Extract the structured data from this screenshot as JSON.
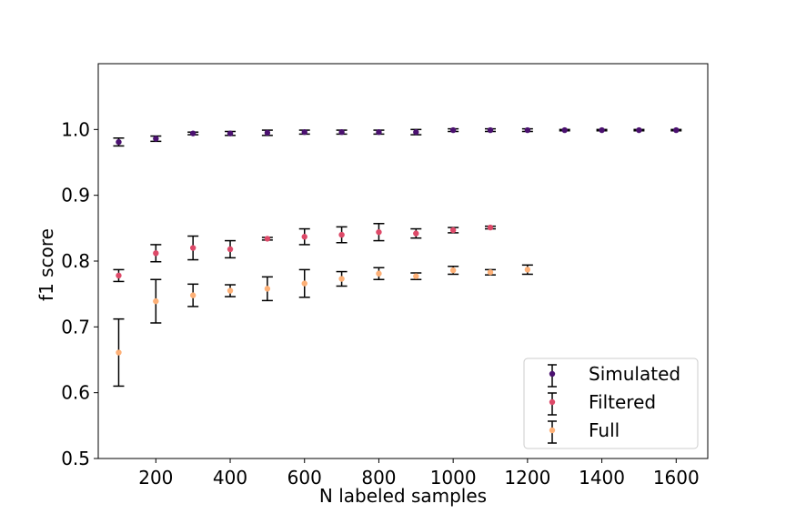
{
  "chart_data": {
    "type": "scatter",
    "title": "",
    "xlabel": "N labeled samples",
    "ylabel": "f1 score",
    "xlim": [
      45,
      1685
    ],
    "ylim": [
      0.5,
      1.1
    ],
    "xticks": [
      200,
      400,
      600,
      800,
      1000,
      1200,
      1400,
      1600
    ],
    "yticks": [
      0.5,
      0.6,
      0.7,
      0.8,
      0.9,
      1.0
    ],
    "xtick_labels": [
      "200",
      "400",
      "600",
      "800",
      "1000",
      "1200",
      "1400",
      "1600"
    ],
    "ytick_labels": [
      "0.5",
      "0.6",
      "0.7",
      "0.8",
      "0.9",
      "1.0"
    ],
    "grid": false,
    "legend_position": "lower right",
    "series": [
      {
        "name": "Simulated",
        "color": "#4b1170",
        "x": [
          100,
          200,
          300,
          400,
          500,
          600,
          700,
          800,
          900,
          1000,
          1100,
          1200,
          1300,
          1400,
          1500,
          1600
        ],
        "y": [
          0.981,
          0.986,
          0.994,
          0.994,
          0.995,
          0.996,
          0.996,
          0.996,
          0.996,
          0.999,
          0.999,
          0.999,
          0.999,
          0.999,
          0.999,
          0.999
        ],
        "err": [
          0.006,
          0.004,
          0.002,
          0.003,
          0.004,
          0.003,
          0.003,
          0.003,
          0.004,
          0.002,
          0.002,
          0.002,
          0.001,
          0.001,
          0.001,
          0.001
        ]
      },
      {
        "name": "Filtered",
        "color": "#dd4968",
        "x": [
          100,
          200,
          300,
          400,
          500,
          600,
          700,
          800,
          900,
          1000,
          1100
        ],
        "y": [
          0.778,
          0.812,
          0.82,
          0.818,
          0.834,
          0.837,
          0.84,
          0.844,
          0.842,
          0.847,
          0.851
        ],
        "err": [
          0.009,
          0.013,
          0.018,
          0.013,
          0.002,
          0.012,
          0.012,
          0.013,
          0.007,
          0.004,
          0.002
        ]
      },
      {
        "name": "Full",
        "color": "#fdb077",
        "x": [
          100,
          200,
          300,
          400,
          500,
          600,
          700,
          800,
          900,
          1000,
          1100,
          1200
        ],
        "y": [
          0.661,
          0.739,
          0.748,
          0.755,
          0.758,
          0.766,
          0.773,
          0.781,
          0.777,
          0.786,
          0.783,
          0.787
        ],
        "err": [
          0.051,
          0.033,
          0.017,
          0.009,
          0.018,
          0.021,
          0.011,
          0.009,
          0.005,
          0.006,
          0.004,
          0.007
        ]
      }
    ]
  }
}
